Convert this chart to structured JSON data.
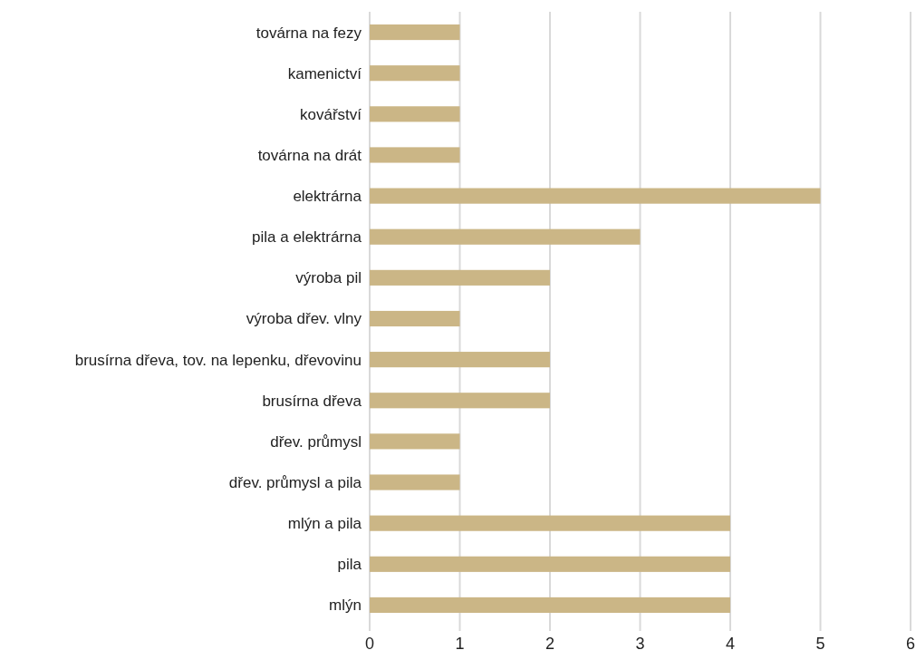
{
  "chart_data": {
    "type": "bar",
    "orientation": "horizontal",
    "categories": [
      "továrna na fezy",
      "kamenictví",
      "kovářství",
      "továrna na drát",
      "elektrárna",
      "pila a elektrárna",
      "výroba pil",
      "výroba dřev. vlny",
      "brusírna dřeva, tov. na lepenku, dřevovinu",
      "brusírna dřeva",
      "dřev. průmysl",
      "dřev. průmysl a pila",
      "mlýn a pila",
      "pila",
      "mlýn"
    ],
    "values": [
      1,
      1,
      1,
      1,
      5,
      3,
      2,
      1,
      2,
      2,
      1,
      1,
      4,
      4,
      4
    ],
    "color": "#cbb686",
    "xlim": [
      0,
      6
    ],
    "xticks": [
      0,
      1,
      2,
      3,
      4,
      5,
      6
    ],
    "grid": "x"
  }
}
